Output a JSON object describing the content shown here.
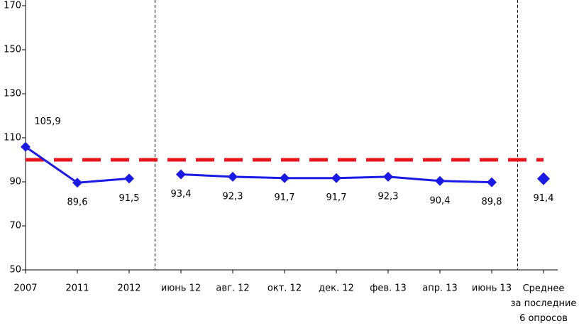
{
  "chart_data": {
    "type": "line",
    "categories": [
      "2007",
      "2011",
      "2012",
      "июнь 12",
      "авг. 12",
      "окт. 12",
      "дек. 12",
      "фев. 13",
      "апр. 13",
      "июнь 13",
      "Среднее\nза последние\n6 опросов"
    ],
    "series": [
      {
        "color": "#1a1ae6",
        "values": [
          105.9,
          89.6,
          91.5,
          93.4,
          92.3,
          91.7,
          91.7,
          92.3,
          90.4,
          89.8,
          91.4
        ],
        "value_labels": [
          "105,9",
          "89,6",
          "91,5",
          "93,4",
          "92,3",
          "91,7",
          "91,7",
          "92,3",
          "90,4",
          "89,8",
          "91,4"
        ]
      }
    ],
    "reference_line": {
      "value": 100,
      "color": "#e8141e"
    },
    "ylim": [
      50,
      170
    ],
    "yticks": [
      50,
      70,
      90,
      110,
      130,
      150,
      170
    ]
  }
}
